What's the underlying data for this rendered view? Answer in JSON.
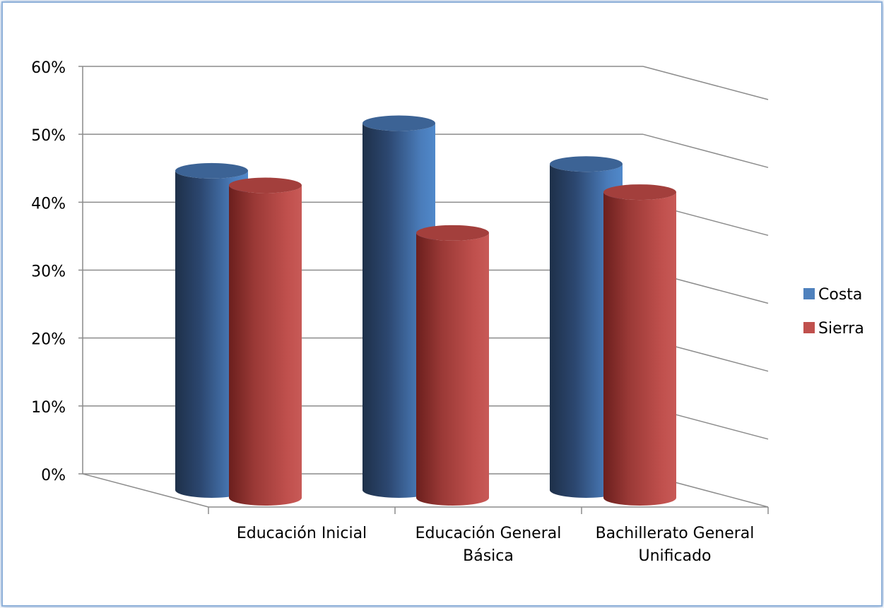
{
  "chart_data": {
    "type": "bar",
    "style": "3d-cylinder",
    "title": "",
    "xlabel": "",
    "ylabel": "",
    "categories": [
      [
        "Educación Inicial"
      ],
      [
        "Educación General",
        "Básica"
      ],
      [
        "Bachillerato General",
        "Unificado"
      ]
    ],
    "series": [
      {
        "name": "Costa",
        "values": [
          0.47,
          0.54,
          0.48
        ],
        "color": "#4F81BD"
      },
      {
        "name": "Sierra",
        "values": [
          0.46,
          0.39,
          0.45
        ],
        "color": "#C0504D"
      }
    ],
    "ylim": [
      0,
      0.6
    ],
    "yticks": [
      0,
      0.1,
      0.2,
      0.3,
      0.4,
      0.5,
      0.6
    ],
    "ytick_labels": [
      "0%",
      "10%",
      "20%",
      "30%",
      "40%",
      "50%",
      "60%"
    ],
    "grid": true,
    "legend_position": "right"
  }
}
